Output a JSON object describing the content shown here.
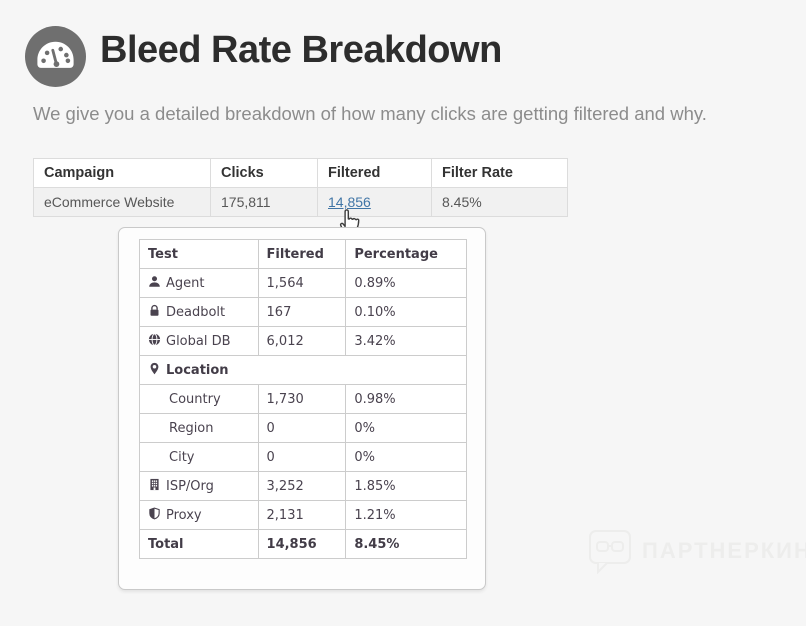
{
  "page": {
    "title": "Bleed Rate Breakdown",
    "subtitle": "We give you a detailed breakdown of how many clicks are getting filtered and why."
  },
  "icons": {
    "header": "gauge-icon",
    "watermark": "speech-bubble-glasses-icon",
    "cursor": "hand-pointer-cursor"
  },
  "colors": {
    "link": "#4075a6",
    "icon_circle": "#6f6f6f",
    "row_highlight": "#f1f1f1",
    "page_background": "#f6f6f6"
  },
  "campaign_table": {
    "headers": [
      "Campaign",
      "Clicks",
      "Filtered",
      "Filter Rate"
    ],
    "rows": [
      {
        "campaign": "eCommerce Website",
        "clicks": "175,811",
        "filtered": "14,856",
        "filter_rate": "8.45%"
      }
    ]
  },
  "breakdown_table": {
    "headers": [
      "Test",
      "Filtered",
      "Percentage"
    ],
    "rows": [
      {
        "label": "Agent",
        "icon": "user-icon",
        "filtered": "1,564",
        "percentage": "0.89%"
      },
      {
        "label": "Deadbolt",
        "icon": "lock-icon",
        "filtered": "167",
        "percentage": "0.10%"
      },
      {
        "label": "Global DB",
        "icon": "globe-icon",
        "filtered": "6,012",
        "percentage": "3.42%"
      },
      {
        "label": "Location",
        "icon": "map-pin-icon",
        "type": "section"
      },
      {
        "label": "Country",
        "filtered": "1,730",
        "percentage": "0.98%",
        "indent": true
      },
      {
        "label": "Region",
        "filtered": "0",
        "percentage": "0%",
        "indent": true
      },
      {
        "label": "City",
        "filtered": "0",
        "percentage": "0%",
        "indent": true
      },
      {
        "label": "ISP/Org",
        "icon": "building-icon",
        "filtered": "3,252",
        "percentage": "1.85%"
      },
      {
        "label": "Proxy",
        "icon": "shield-icon",
        "filtered": "2,131",
        "percentage": "1.21%"
      },
      {
        "label": "Total",
        "filtered": "14,856",
        "percentage": "8.45%",
        "bold": true
      }
    ]
  },
  "watermark": {
    "text": "ПАРТНЕРКИН"
  }
}
